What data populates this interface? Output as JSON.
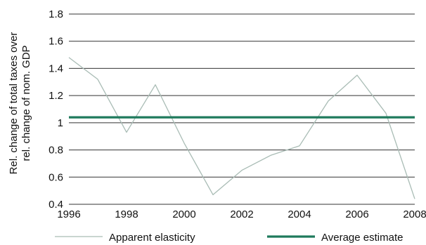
{
  "chart_data": {
    "type": "line",
    "ylabel_lines": [
      "Rel. change of total taxes over",
      "rel. change of nom. GDP"
    ],
    "xlim": [
      1996,
      2008
    ],
    "ylim": [
      0.4,
      1.8
    ],
    "x_ticks": [
      "1996",
      "1998",
      "2000",
      "2002",
      "2004",
      "2006",
      "2008"
    ],
    "y_ticks": [
      "0.4",
      "0.6",
      "0.8",
      "1",
      "1.2",
      "1.4",
      "1.6",
      "1.8"
    ],
    "grid": "horizontal",
    "legend_position": "bottom",
    "series": [
      {
        "name": "Apparent elasticity",
        "color": "#a9bcb5",
        "x": [
          1996,
          1997,
          1998,
          1999,
          2000,
          2001,
          2002,
          2003,
          2004,
          2005,
          2006,
          2007,
          2008
        ],
        "y": [
          1.48,
          1.32,
          0.93,
          1.28,
          0.85,
          0.47,
          0.65,
          0.76,
          0.83,
          1.16,
          1.35,
          1.07,
          0.44
        ]
      },
      {
        "name": "Average estimate",
        "color": "#1f7a5c",
        "x": [
          1996,
          2008
        ],
        "y": [
          1.04,
          1.04
        ]
      }
    ]
  }
}
